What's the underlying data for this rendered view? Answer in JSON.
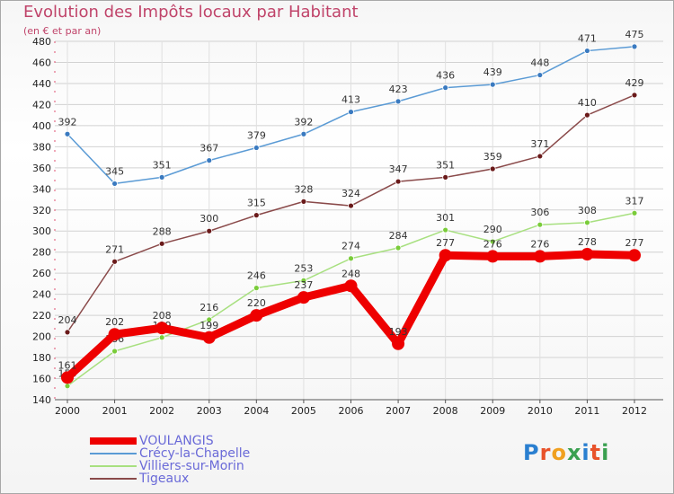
{
  "title": "Evolution des Impôts locaux par Habitant",
  "subtitle": "(en € et par an)",
  "logo": "Proxiti",
  "chart_data": {
    "type": "line",
    "title": "Evolution des Impôts locaux par Habitant",
    "ylabel": "(en € et par an)",
    "xlabel": "",
    "categories": [
      "2000",
      "2001",
      "2002",
      "2003",
      "2004",
      "2005",
      "2006",
      "2007",
      "2008",
      "2009",
      "2010",
      "2011",
      "2012"
    ],
    "ylim": [
      140,
      480
    ],
    "ystep": 20,
    "grid": true,
    "legend_position": "bottom-left",
    "series": [
      {
        "name": "VOULANGIS",
        "color": "#ee0000",
        "bold": true,
        "values": [
          161,
          202,
          208,
          199,
          220,
          237,
          248,
          193,
          277,
          276,
          276,
          278,
          277
        ]
      },
      {
        "name": "Crécy-la-Chapelle",
        "color": "#5b9bd5",
        "point_color": "#3a7ac0",
        "bold": false,
        "values": [
          392,
          345,
          351,
          367,
          379,
          392,
          413,
          423,
          436,
          439,
          448,
          471,
          475
        ]
      },
      {
        "name": "Villiers-sur-Morin",
        "color": "#a8e080",
        "point_color": "#7acc3a",
        "bold": false,
        "values": [
          153,
          186,
          199,
          216,
          246,
          253,
          274,
          284,
          301,
          290,
          306,
          308,
          317
        ]
      },
      {
        "name": "Tigeaux",
        "color": "#8a4a4a",
        "point_color": "#6a1a1a",
        "bold": false,
        "values": [
          204,
          271,
          288,
          300,
          315,
          328,
          324,
          347,
          351,
          359,
          371,
          410,
          429
        ]
      }
    ]
  }
}
